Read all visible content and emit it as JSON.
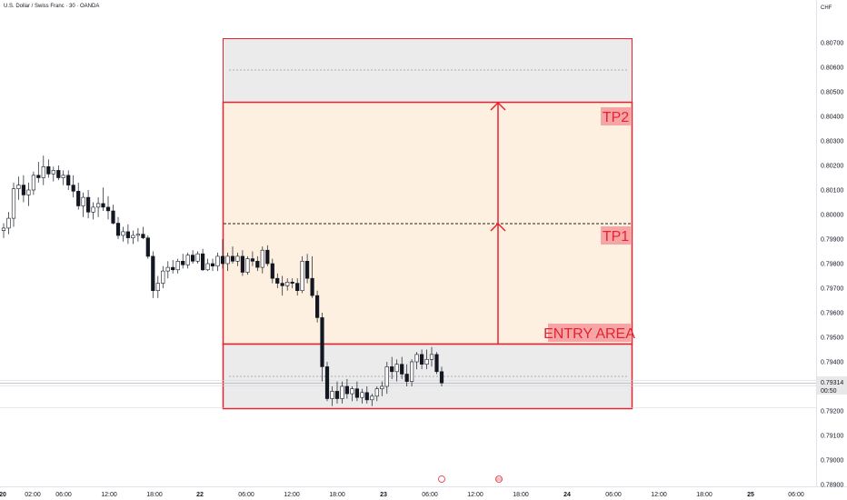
{
  "header": {
    "symbol_title": "U.S. Dollar / Swiss Franc · 30 · OANDA"
  },
  "price_axis": {
    "currency": "CHF",
    "ticks": [
      "0.80700",
      "0.80600",
      "0.80500",
      "0.80400",
      "0.80300",
      "0.80200",
      "0.80100",
      "0.80000",
      "0.79900",
      "0.79800",
      "0.79700",
      "0.79600",
      "0.79500",
      "0.79400",
      "0.79200",
      "0.79100",
      "0.79000",
      "0.78900"
    ],
    "current_price": "0.79314",
    "countdown": "00:50"
  },
  "time_axis": {
    "labels": [
      {
        "text": "20",
        "bold": true
      },
      {
        "text": "02:00",
        "bold": false
      },
      {
        "text": "06:00",
        "bold": false
      },
      {
        "text": "12:00",
        "bold": false
      },
      {
        "text": "18:00",
        "bold": false
      },
      {
        "text": "22",
        "bold": true
      },
      {
        "text": "06:00",
        "bold": false
      },
      {
        "text": "12:00",
        "bold": false
      },
      {
        "text": "18:00",
        "bold": false
      },
      {
        "text": "23",
        "bold": true
      },
      {
        "text": "06:00",
        "bold": false
      },
      {
        "text": "12:00",
        "bold": false
      },
      {
        "text": "18:00",
        "bold": false
      },
      {
        "text": "24",
        "bold": true
      },
      {
        "text": "06:00",
        "bold": false
      },
      {
        "text": "12:00",
        "bold": false
      },
      {
        "text": "18:00",
        "bold": false
      },
      {
        "text": "25",
        "bold": true
      },
      {
        "text": "06:00",
        "bold": false
      }
    ]
  },
  "annotations": {
    "tp2_label": "TP2",
    "tp1_label": "TP1",
    "entry_label": "ENTRY AREA"
  },
  "colors": {
    "zone_border": "#e8222e",
    "entry_fill": "#fdf0e1",
    "grey_fill": "#ebebeb",
    "label_bg": "#f5a5a5",
    "candle": "#131722"
  },
  "chart_data": {
    "type": "candlestick",
    "symbol": "USDCHF",
    "interval": "30",
    "ylim": [
      0.78895,
      0.80775
    ],
    "zones": {
      "upper_grey": [
        0.8045,
        0.8071
      ],
      "target_area": [
        0.7947,
        0.8045
      ],
      "lower_grey": [
        0.79205,
        0.7947
      ],
      "tp1_level": 0.7996,
      "tp2_level": 0.8045
    },
    "candles": [
      [
        0.79935,
        0.79965,
        0.79905,
        0.79945
      ],
      [
        0.79945,
        0.8001,
        0.7992,
        0.79985
      ],
      [
        0.79985,
        0.8013,
        0.7995,
        0.80105
      ],
      [
        0.80105,
        0.80155,
        0.8006,
        0.8012
      ],
      [
        0.8012,
        0.8016,
        0.8005,
        0.8008
      ],
      [
        0.8008,
        0.8013,
        0.80035,
        0.801
      ],
      [
        0.801,
        0.80175,
        0.8008,
        0.8016
      ],
      [
        0.8016,
        0.80215,
        0.8013,
        0.8015
      ],
      [
        0.8015,
        0.8024,
        0.8012,
        0.80195
      ],
      [
        0.80195,
        0.80225,
        0.8015,
        0.80165
      ],
      [
        0.80165,
        0.80195,
        0.80135,
        0.8018
      ],
      [
        0.8018,
        0.802,
        0.8014,
        0.8015
      ],
      [
        0.8015,
        0.8018,
        0.8012,
        0.8016
      ],
      [
        0.8016,
        0.8018,
        0.801,
        0.8012
      ],
      [
        0.8012,
        0.8016,
        0.8007,
        0.80095
      ],
      [
        0.80095,
        0.8013,
        0.8002,
        0.80035
      ],
      [
        0.80035,
        0.8009,
        0.7999,
        0.8007
      ],
      [
        0.8007,
        0.801,
        0.79985,
        0.8001
      ],
      [
        0.8001,
        0.8005,
        0.7998,
        0.8003
      ],
      [
        0.8003,
        0.8007,
        0.7999,
        0.80045
      ],
      [
        0.80045,
        0.8011,
        0.80015,
        0.8003
      ],
      [
        0.8003,
        0.80075,
        0.7998,
        0.80015
      ],
      [
        0.80015,
        0.8004,
        0.7996,
        0.79965
      ],
      [
        0.79965,
        0.7999,
        0.799,
        0.79915
      ],
      [
        0.79915,
        0.7995,
        0.7989,
        0.7993
      ],
      [
        0.7993,
        0.7996,
        0.7988,
        0.79905
      ],
      [
        0.79905,
        0.79935,
        0.7988,
        0.79915
      ],
      [
        0.79915,
        0.79945,
        0.7989,
        0.7992
      ],
      [
        0.7992,
        0.7995,
        0.799,
        0.79905
      ],
      [
        0.79905,
        0.79915,
        0.7982,
        0.7983
      ],
      [
        0.7983,
        0.7985,
        0.7966,
        0.7969
      ],
      [
        0.7969,
        0.7975,
        0.7966,
        0.7972
      ],
      [
        0.7972,
        0.7979,
        0.797,
        0.7977
      ],
      [
        0.7977,
        0.7981,
        0.7974,
        0.79785
      ],
      [
        0.79785,
        0.79815,
        0.7976,
        0.79775
      ],
      [
        0.79775,
        0.7982,
        0.7976,
        0.7981
      ],
      [
        0.7981,
        0.7984,
        0.7978,
        0.79795
      ],
      [
        0.79795,
        0.79845,
        0.7978,
        0.79835
      ],
      [
        0.79835,
        0.79855,
        0.798,
        0.7981
      ],
      [
        0.7981,
        0.7985,
        0.798,
        0.7984
      ],
      [
        0.7984,
        0.7986,
        0.7977,
        0.79775
      ],
      [
        0.79775,
        0.7982,
        0.7977,
        0.798
      ],
      [
        0.798,
        0.7982,
        0.7977,
        0.7979
      ],
      [
        0.7979,
        0.79845,
        0.7977,
        0.7983
      ],
      [
        0.7983,
        0.799,
        0.7978,
        0.798
      ],
      [
        0.798,
        0.79845,
        0.7977,
        0.7983
      ],
      [
        0.7983,
        0.7987,
        0.798,
        0.7981
      ],
      [
        0.7981,
        0.79845,
        0.7979,
        0.7983
      ],
      [
        0.7983,
        0.79855,
        0.7975,
        0.79765
      ],
      [
        0.79765,
        0.7983,
        0.79755,
        0.7982
      ],
      [
        0.7982,
        0.7985,
        0.7979,
        0.7981
      ],
      [
        0.7981,
        0.7983,
        0.7977,
        0.79785
      ],
      [
        0.79785,
        0.7987,
        0.7976,
        0.79855
      ],
      [
        0.79855,
        0.79875,
        0.7979,
        0.798
      ],
      [
        0.798,
        0.7982,
        0.7972,
        0.7974
      ],
      [
        0.7974,
        0.7976,
        0.797,
        0.7972
      ],
      [
        0.7972,
        0.7975,
        0.7967,
        0.7971
      ],
      [
        0.7971,
        0.7974,
        0.7969,
        0.79725
      ],
      [
        0.79725,
        0.7974,
        0.797,
        0.7972
      ],
      [
        0.7972,
        0.7974,
        0.7967,
        0.7969
      ],
      [
        0.7969,
        0.7983,
        0.7968,
        0.7981
      ],
      [
        0.7981,
        0.7984,
        0.7972,
        0.7974
      ],
      [
        0.7974,
        0.7983,
        0.7966,
        0.7967
      ],
      [
        0.7967,
        0.7969,
        0.7956,
        0.7958
      ],
      [
        0.7958,
        0.796,
        0.7932,
        0.7938
      ],
      [
        0.7938,
        0.794,
        0.7924,
        0.7925
      ],
      [
        0.7925,
        0.793,
        0.7922,
        0.7928
      ],
      [
        0.7928,
        0.7932,
        0.7923,
        0.7925
      ],
      [
        0.7925,
        0.7932,
        0.7923,
        0.793
      ],
      [
        0.793,
        0.7933,
        0.7925,
        0.7927
      ],
      [
        0.7927,
        0.793,
        0.7924,
        0.7929
      ],
      [
        0.7929,
        0.7932,
        0.7924,
        0.79255
      ],
      [
        0.79255,
        0.7929,
        0.7923,
        0.79275
      ],
      [
        0.79275,
        0.793,
        0.7923,
        0.79245
      ],
      [
        0.79245,
        0.7927,
        0.7922,
        0.7926
      ],
      [
        0.7926,
        0.793,
        0.7924,
        0.7929
      ],
      [
        0.7929,
        0.7932,
        0.7926,
        0.793
      ],
      [
        0.793,
        0.794,
        0.7927,
        0.7938
      ],
      [
        0.7938,
        0.7942,
        0.7933,
        0.7936
      ],
      [
        0.7936,
        0.7941,
        0.7932,
        0.7939
      ],
      [
        0.7939,
        0.7942,
        0.7933,
        0.7935
      ],
      [
        0.7935,
        0.7939,
        0.793,
        0.7932
      ],
      [
        0.7932,
        0.7941,
        0.793,
        0.794
      ],
      [
        0.794,
        0.7944,
        0.7937,
        0.7943
      ],
      [
        0.7943,
        0.7945,
        0.7937,
        0.7939
      ],
      [
        0.7939,
        0.7945,
        0.7937,
        0.7941
      ],
      [
        0.7941,
        0.7946,
        0.7938,
        0.7943
      ],
      [
        0.7943,
        0.7944,
        0.7935,
        0.7936
      ],
      [
        0.7936,
        0.7938,
        0.793,
        0.79314
      ]
    ]
  }
}
